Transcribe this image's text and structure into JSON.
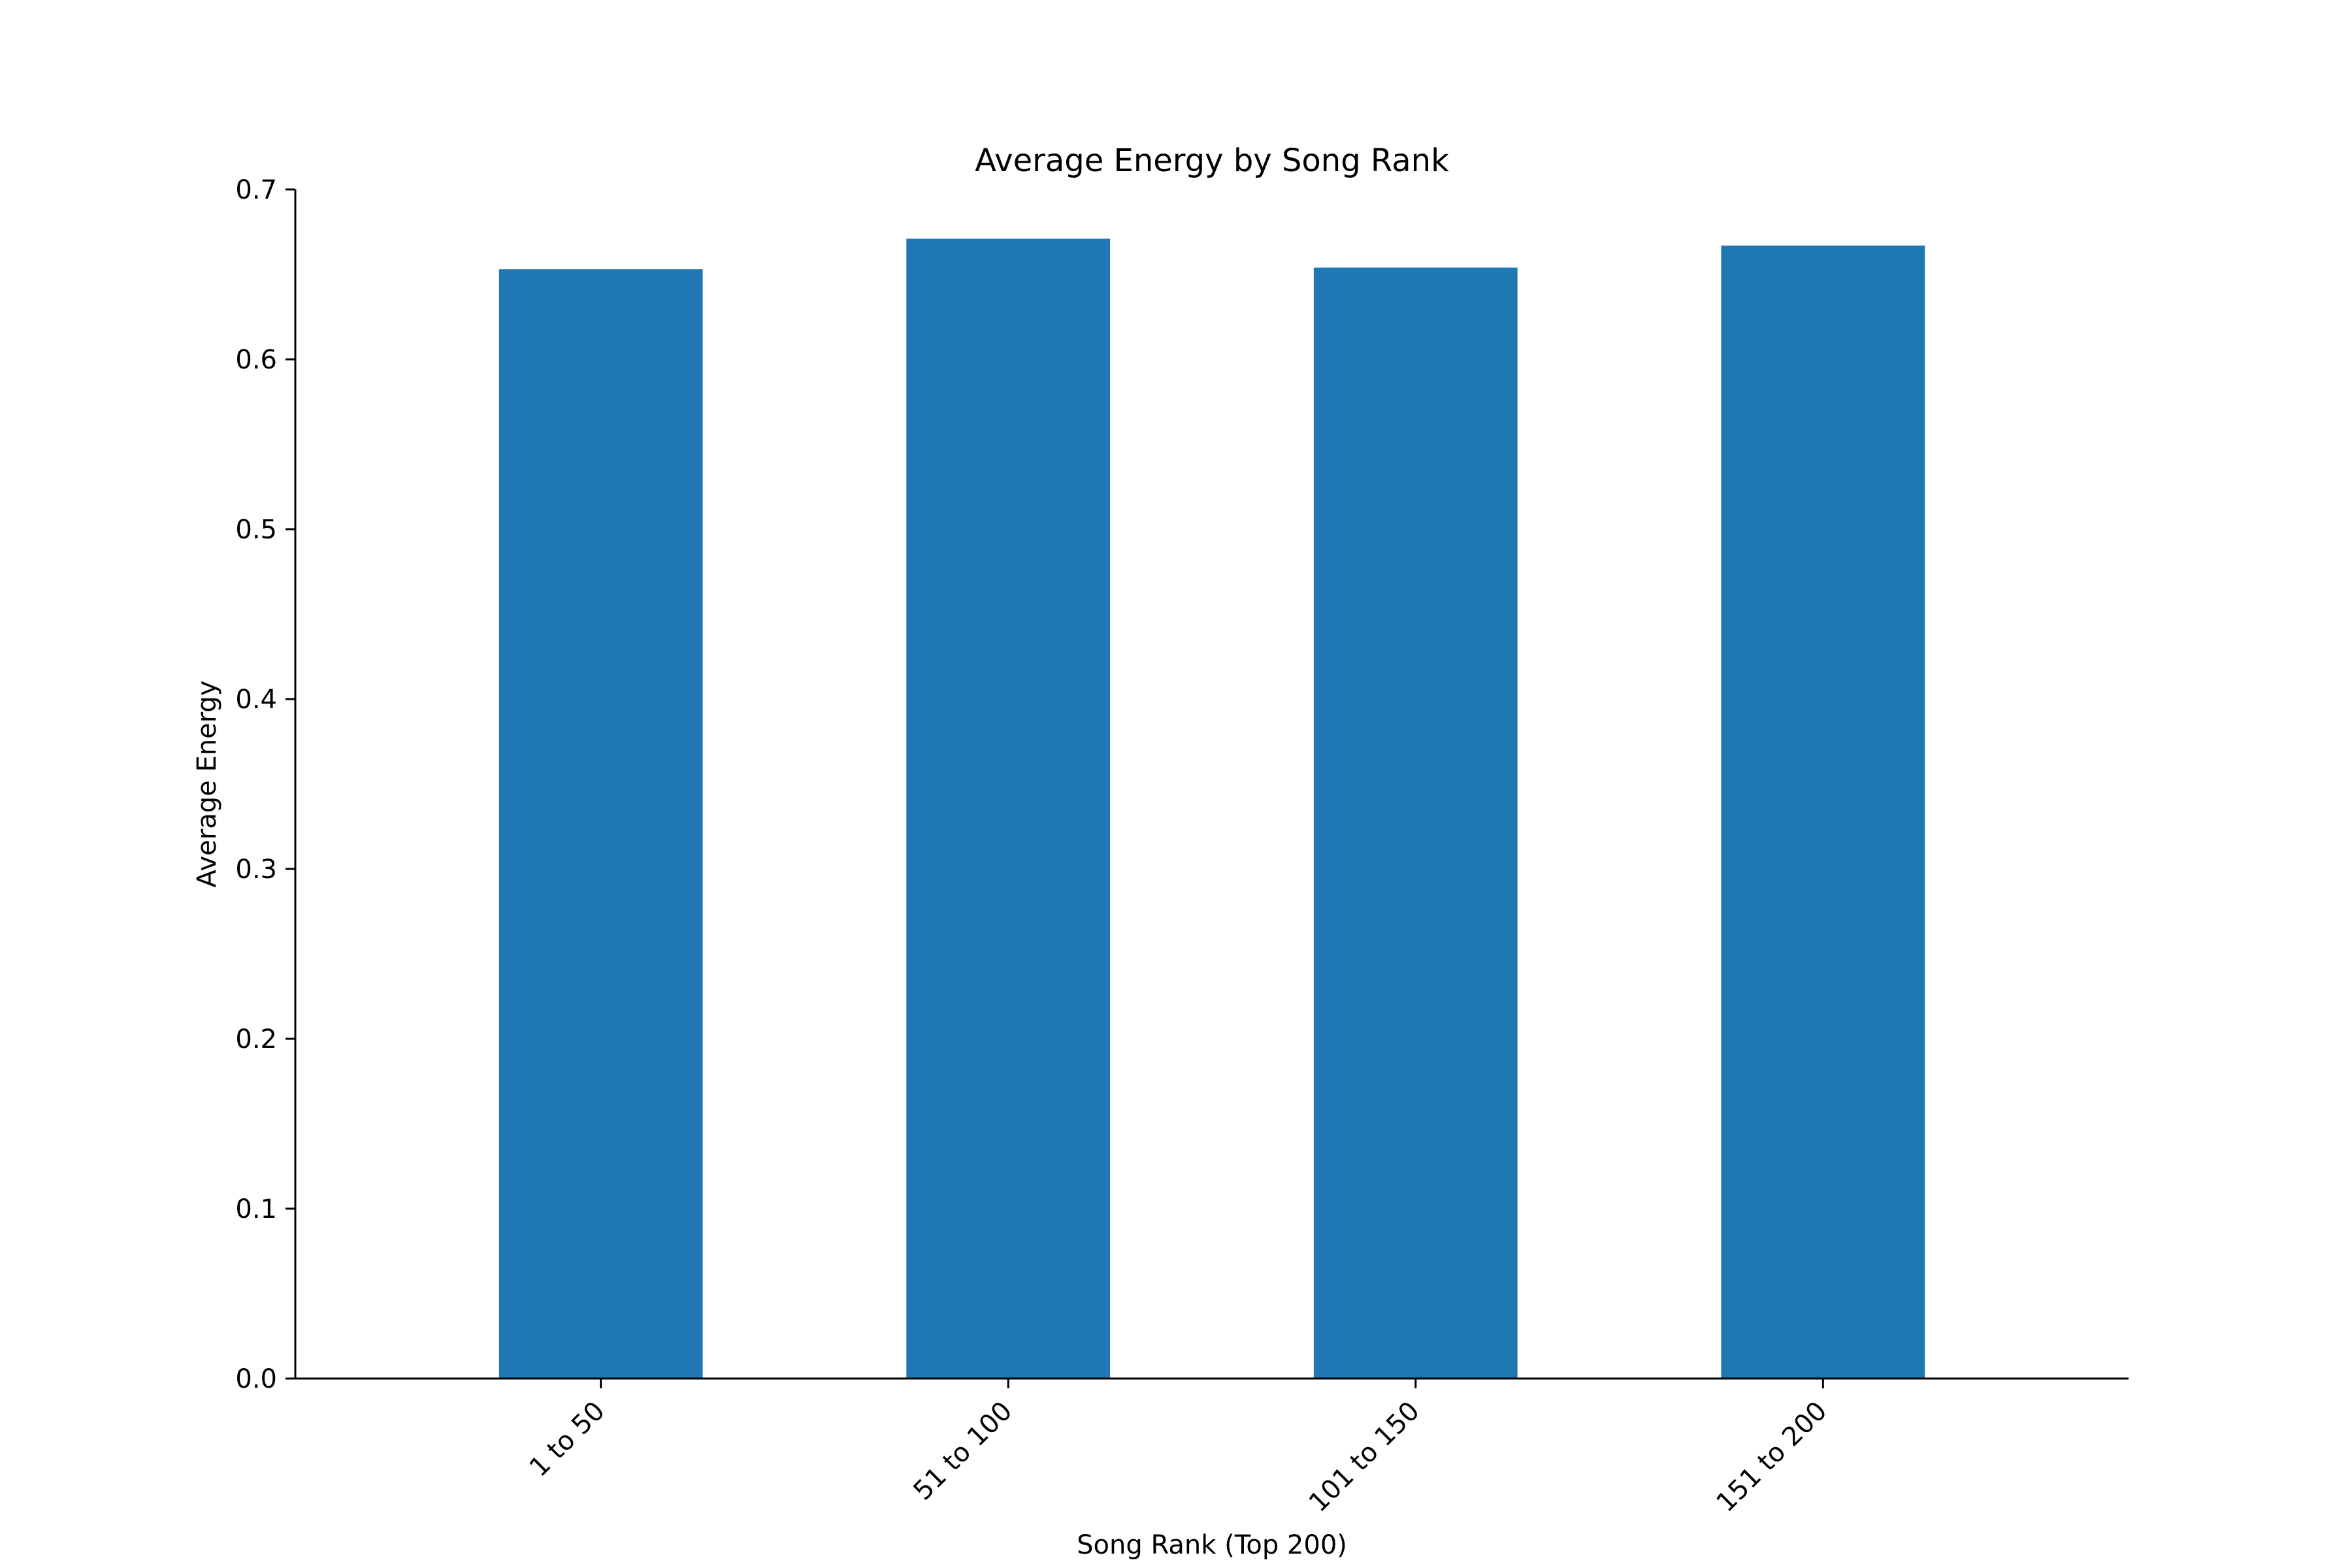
{
  "chart_data": {
    "type": "bar",
    "title": "Average Energy by Song Rank",
    "xlabel": "Song Rank (Top 200)",
    "ylabel": "Average Energy",
    "categories": [
      "1 to 50",
      "51 to 100",
      "101 to 150",
      "151 to 200"
    ],
    "values": [
      0.653,
      0.671,
      0.654,
      0.667
    ],
    "ylim": [
      0,
      0.7
    ],
    "yticks": [
      "0.0",
      "0.1",
      "0.2",
      "0.3",
      "0.4",
      "0.5",
      "0.6",
      "0.7"
    ],
    "bar_color": "#1f77b4",
    "grid": false,
    "legend": "none"
  }
}
